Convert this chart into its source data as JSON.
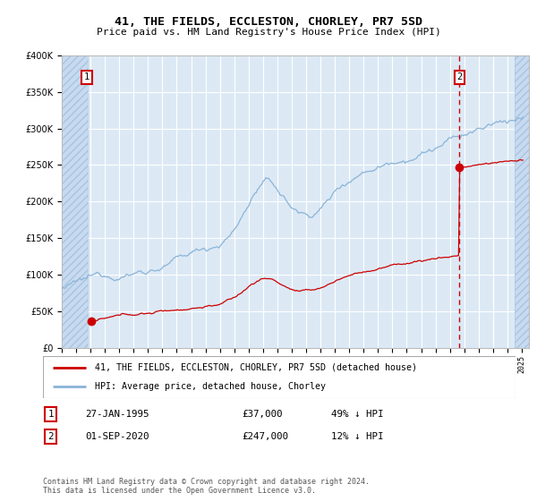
{
  "title": "41, THE FIELDS, ECCLESTON, CHORLEY, PR7 5SD",
  "subtitle": "Price paid vs. HM Land Registry's House Price Index (HPI)",
  "ylim": [
    0,
    400000
  ],
  "yticks": [
    0,
    50000,
    100000,
    150000,
    200000,
    250000,
    300000,
    350000,
    400000
  ],
  "background_color": "#dce9f5",
  "hatch_color": "#c8daf0",
  "grid_color": "#ffffff",
  "hpi_color": "#8ab4d8",
  "price_color": "#cc0000",
  "sale1_date_x": 1995.07,
  "sale1_price": 37000,
  "sale2_date_x": 2020.67,
  "sale2_price": 247000,
  "legend_line1": "41, THE FIELDS, ECCLESTON, CHORLEY, PR7 5SD (detached house)",
  "legend_line2": "HPI: Average price, detached house, Chorley",
  "table_row1": [
    "1",
    "27-JAN-1995",
    "£37,000",
    "49% ↓ HPI"
  ],
  "table_row2": [
    "2",
    "01-SEP-2020",
    "£247,000",
    "12% ↓ HPI"
  ],
  "footnote": "Contains HM Land Registry data © Crown copyright and database right 2024.\nThis data is licensed under the Open Government Licence v3.0.",
  "xmin": 1993.0,
  "xmax": 2025.5,
  "hatch_left_end": 1994.83,
  "hatch_right_start": 2024.5
}
